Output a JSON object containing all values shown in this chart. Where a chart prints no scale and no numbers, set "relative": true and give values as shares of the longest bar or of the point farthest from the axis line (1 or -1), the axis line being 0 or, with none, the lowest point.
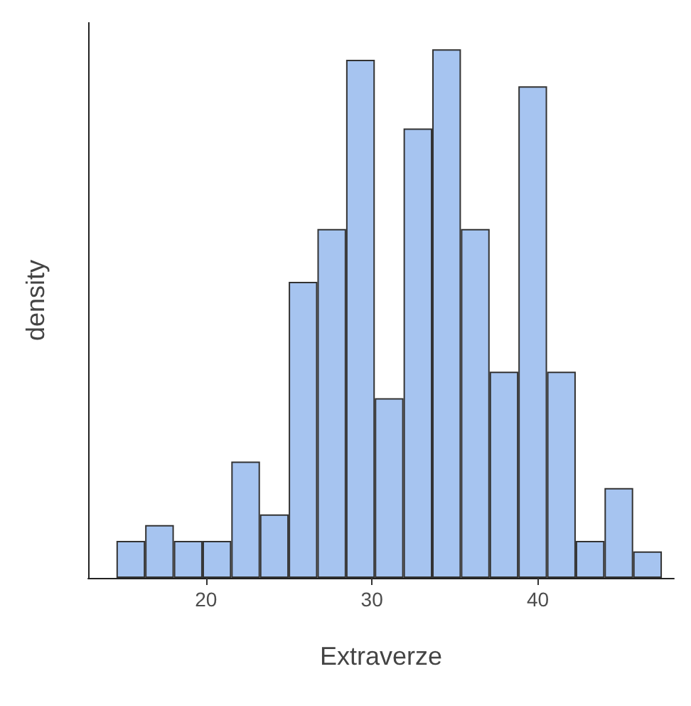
{
  "chart_data": {
    "type": "bar",
    "xlabel": "Extraverze",
    "ylabel": "density",
    "relative": true,
    "x": [
      15.47,
      17.2,
      18.93,
      20.66,
      22.39,
      24.12,
      25.85,
      27.58,
      29.31,
      31.04,
      32.77,
      34.5,
      36.23,
      37.96,
      39.69,
      41.42,
      43.15,
      44.88,
      46.61
    ],
    "values": [
      0.07,
      0.1,
      0.07,
      0.07,
      0.22,
      0.12,
      0.56,
      0.66,
      0.98,
      0.34,
      0.85,
      1,
      0.66,
      0.39,
      0.93,
      0.39,
      0.07,
      0.17,
      0.05
    ],
    "color": "#a6c4f0",
    "xlim": [
      12.9,
      48.2
    ],
    "xticks": [
      20,
      30,
      40
    ],
    "grid": false
  }
}
